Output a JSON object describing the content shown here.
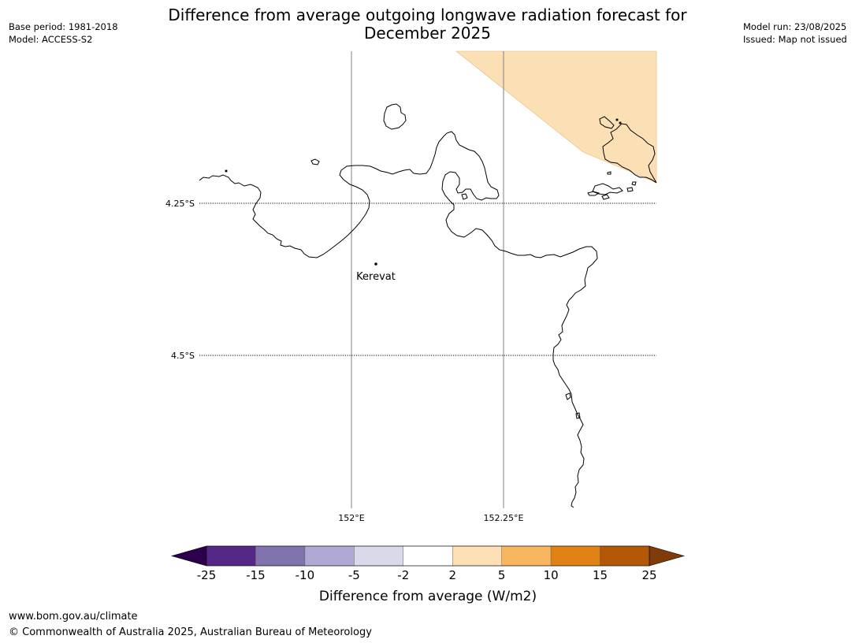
{
  "header": {
    "title_line1": "Difference from average outgoing longwave radiation forecast for",
    "title_line2": "December 2025",
    "base_period": "Base period: 1981-2018",
    "model": "Model: ACCESS-S2",
    "model_run": "Model run: 23/08/2025",
    "issued": "Issued: Map not issued"
  },
  "map": {
    "lat_labels": [
      "4.25°S",
      "4.5°S"
    ],
    "lon_labels": [
      "152°E",
      "152.25°E"
    ],
    "place": "Kerevat",
    "anomaly_region_color": "#fce0b5",
    "coastline_color": "#000000"
  },
  "colorbar": {
    "ticks": [
      "-25",
      "-15",
      "-10",
      "-5",
      "-2",
      "2",
      "5",
      "10",
      "15",
      "25"
    ],
    "colors": [
      "#552787",
      "#8073ae",
      "#b0a9d3",
      "#d9d9ea",
      "#ffffff",
      "#fde0b5",
      "#f8b65f",
      "#e08214",
      "#b35806"
    ],
    "extend_low_color": "#2d004b",
    "extend_high_color": "#7f3b08",
    "label": "Difference from average (W/m2)"
  },
  "footer": {
    "url": "www.bom.gov.au/climate",
    "copyright": "© Commonwealth of Australia 2025, Australian Bureau of Meteorology"
  }
}
